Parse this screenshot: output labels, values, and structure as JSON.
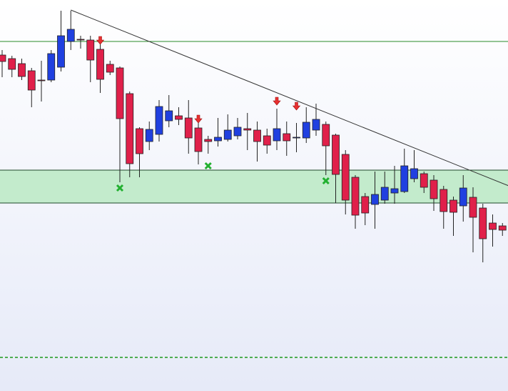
{
  "chart_data": {
    "type": "candlestick",
    "ylim": [
      0,
      547
    ],
    "up_color": "#2040e0",
    "down_color": "#e0204a",
    "open": [
      470,
      465,
      458,
      448,
      435,
      435,
      453,
      489,
      492,
      491,
      478,
      457,
      452,
      416,
      367,
      349,
      359,
      378,
      385,
      382,
      368,
      352,
      350,
      352,
      357,
      367,
      365,
      357,
      350,
      360,
      355,
      354,
      365,
      373,
      358,
      331,
      299,
      272,
      261,
      267,
      277,
      279,
      297,
      304,
      295,
      282,
      267,
      259,
      271,
      256,
      235,
      231
    ],
    "high": [
      477,
      469,
      465,
      452,
      462,
      477,
      532,
      532,
      497,
      497,
      487,
      462,
      454,
      419,
      369,
      377,
      407,
      414,
      397,
      407,
      382,
      357,
      382,
      387,
      382,
      389,
      377,
      367,
      395,
      377,
      375,
      397,
      402,
      377,
      360,
      337,
      302,
      277,
      307,
      307,
      315,
      339,
      337,
      307,
      302,
      287,
      272,
      302,
      285,
      262,
      247,
      235
    ],
    "low": [
      439,
      439,
      435,
      397,
      405,
      432,
      447,
      477,
      479,
      432,
      417,
      442,
      292,
      299,
      299,
      337,
      349,
      369,
      372,
      332,
      317,
      332,
      342,
      349,
      352,
      337,
      321,
      332,
      337,
      329,
      334,
      347,
      357,
      302,
      263,
      247,
      227,
      232,
      227,
      262,
      262,
      277,
      292,
      277,
      252,
      227,
      217,
      237,
      194,
      180,
      202,
      217
    ],
    "close": [
      461,
      450,
      440,
      421,
      434,
      472,
      497,
      506,
      491,
      463,
      436,
      446,
      381,
      318,
      332,
      366,
      398,
      392,
      380,
      354,
      335,
      349,
      355,
      365,
      369,
      365,
      349,
      344,
      367,
      350,
      355,
      376,
      380,
      343,
      303,
      267,
      246,
      249,
      275,
      285,
      283,
      315,
      311,
      285,
      269,
      251,
      250,
      284,
      243,
      213,
      226,
      225
    ],
    "levels": [
      {
        "value": 489,
        "color": "#2a8a2a",
        "style": "solid"
      },
      {
        "value": 47,
        "color": "#1a9a1a",
        "style": "dashed"
      }
    ],
    "zone": {
      "low": 263,
      "high": 309,
      "color": "#c3ebcc"
    },
    "trendline": {
      "start_index": 7,
      "start_value": 533,
      "end_index": 52,
      "end_value": 285
    },
    "sell_signals": [
      {
        "index": 10,
        "value": 489
      },
      {
        "index": 20,
        "value": 379
      },
      {
        "index": 28,
        "value": 404
      },
      {
        "index": 30,
        "value": 397
      }
    ],
    "buy_signals": [
      {
        "index": 12,
        "value": 284
      },
      {
        "index": 21,
        "value": 315
      },
      {
        "index": 33,
        "value": 294
      }
    ]
  }
}
